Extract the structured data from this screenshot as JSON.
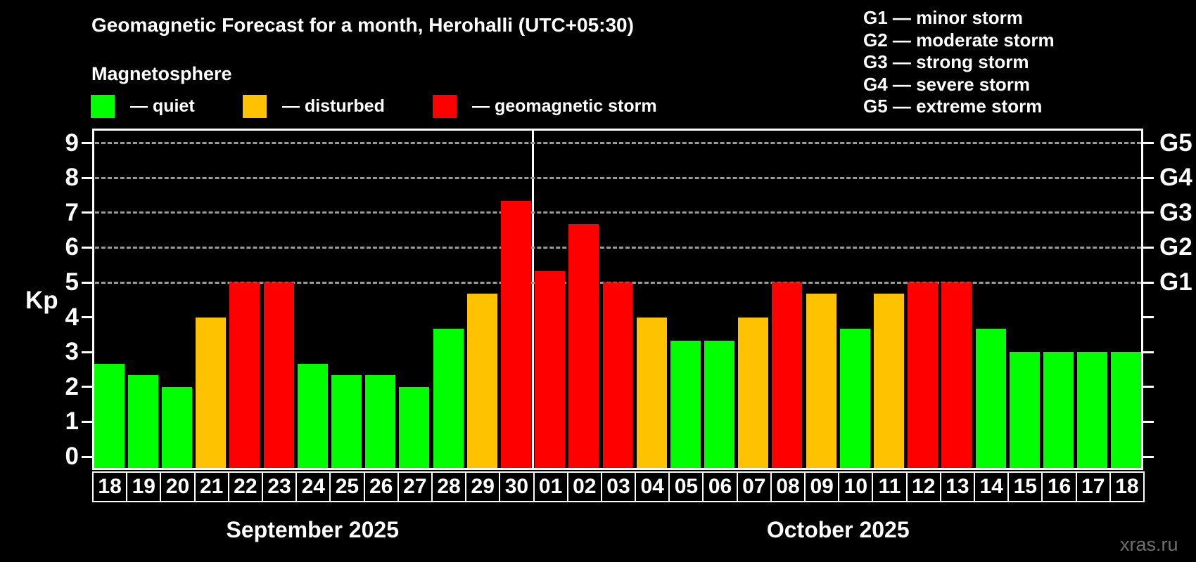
{
  "title": "Geomagnetic Forecast for a month, Herohalli (UTC+05:30)",
  "subtitle": "Magnetosphere",
  "watermark": "xras.ru",
  "legend": {
    "items": [
      {
        "key": "quiet",
        "label": "— quiet",
        "color": "#00ff00"
      },
      {
        "key": "disturbed",
        "label": "— disturbed",
        "color": "#ffc200"
      },
      {
        "key": "storm",
        "label": "— geomagnetic storm",
        "color": "#ff0000"
      }
    ]
  },
  "storm_scale_legend": [
    "G1 — minor storm",
    "G2 — moderate storm",
    "G3 — strong storm",
    "G4 — severe storm",
    "G5 — extreme storm"
  ],
  "chart_data": {
    "type": "bar",
    "title": "Geomagnetic Forecast for a month, Herohalli (UTC+05:30)",
    "ylabel": "Kp",
    "ylim": [
      -0.4,
      9.4
    ],
    "yticks": [
      0,
      1,
      2,
      3,
      4,
      5,
      6,
      7,
      8,
      9
    ],
    "gridlines_at_kp": [
      5,
      6,
      7,
      8,
      9
    ],
    "grid": "dashed",
    "legend_position": "top",
    "right_axis": [
      {
        "kp": 5,
        "label": "G1"
      },
      {
        "kp": 6,
        "label": "G2"
      },
      {
        "kp": 7,
        "label": "G3"
      },
      {
        "kp": 8,
        "label": "G4"
      },
      {
        "kp": 9,
        "label": "G5"
      }
    ],
    "status_colors": {
      "quiet": "#00ff00",
      "disturbed": "#ffc200",
      "storm": "#ff0000"
    },
    "months": [
      {
        "label": "September 2025",
        "bars": [
          {
            "day": "18",
            "kp": 2.67,
            "status": "quiet"
          },
          {
            "day": "19",
            "kp": 2.33,
            "status": "quiet"
          },
          {
            "day": "20",
            "kp": 2.0,
            "status": "quiet"
          },
          {
            "day": "21",
            "kp": 4.0,
            "status": "disturbed"
          },
          {
            "day": "22",
            "kp": 5.0,
            "status": "storm"
          },
          {
            "day": "23",
            "kp": 5.0,
            "status": "storm"
          },
          {
            "day": "24",
            "kp": 2.67,
            "status": "quiet"
          },
          {
            "day": "25",
            "kp": 2.33,
            "status": "quiet"
          },
          {
            "day": "26",
            "kp": 2.33,
            "status": "quiet"
          },
          {
            "day": "27",
            "kp": 2.0,
            "status": "quiet"
          },
          {
            "day": "28",
            "kp": 3.67,
            "status": "quiet"
          },
          {
            "day": "29",
            "kp": 4.67,
            "status": "disturbed"
          },
          {
            "day": "30",
            "kp": 7.33,
            "status": "storm"
          }
        ]
      },
      {
        "label": "October 2025",
        "bars": [
          {
            "day": "01",
            "kp": 5.33,
            "status": "storm"
          },
          {
            "day": "02",
            "kp": 6.67,
            "status": "storm"
          },
          {
            "day": "03",
            "kp": 5.0,
            "status": "storm"
          },
          {
            "day": "04",
            "kp": 4.0,
            "status": "disturbed"
          },
          {
            "day": "05",
            "kp": 3.33,
            "status": "quiet"
          },
          {
            "day": "06",
            "kp": 3.33,
            "status": "quiet"
          },
          {
            "day": "07",
            "kp": 4.0,
            "status": "disturbed"
          },
          {
            "day": "08",
            "kp": 5.0,
            "status": "storm"
          },
          {
            "day": "09",
            "kp": 4.67,
            "status": "disturbed"
          },
          {
            "day": "10",
            "kp": 3.67,
            "status": "quiet"
          },
          {
            "day": "11",
            "kp": 4.67,
            "status": "disturbed"
          },
          {
            "day": "12",
            "kp": 5.0,
            "status": "storm"
          },
          {
            "day": "13",
            "kp": 5.0,
            "status": "storm"
          },
          {
            "day": "14",
            "kp": 3.67,
            "status": "quiet"
          },
          {
            "day": "15",
            "kp": 3.0,
            "status": "quiet"
          },
          {
            "day": "16",
            "kp": 3.0,
            "status": "quiet"
          },
          {
            "day": "17",
            "kp": 3.0,
            "status": "quiet"
          },
          {
            "day": "18",
            "kp": 3.0,
            "status": "quiet"
          }
        ]
      }
    ]
  }
}
